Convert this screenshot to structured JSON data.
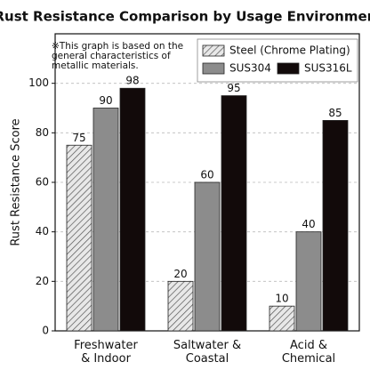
{
  "chart_data": {
    "type": "bar",
    "title": "Rust Resistance Comparison by Usage Environment",
    "note": "※This graph is based on the\ngeneral characteristics of\nmetallic materials.",
    "y_label": "Rust Resistance Score",
    "categories": [
      "Freshwater\n& Indoor",
      "Saltwater &\nCoastal",
      "Acid &\nChemical"
    ],
    "series": [
      {
        "name": "Steel (Chrome Plating)",
        "color": "#e8e8e8",
        "hatch": "//",
        "values": [
          75,
          20,
          10
        ]
      },
      {
        "name": "SUS304",
        "color": "#8c8c8c",
        "values": [
          90,
          60,
          40
        ]
      },
      {
        "name": "SUS316L",
        "color": "#120a0a",
        "values": [
          98,
          95,
          85
        ]
      }
    ],
    "ylim": [
      0,
      120
    ],
    "yticks": [
      0,
      20,
      40,
      60,
      80,
      100
    ],
    "grid": true,
    "legend": "upper right"
  }
}
